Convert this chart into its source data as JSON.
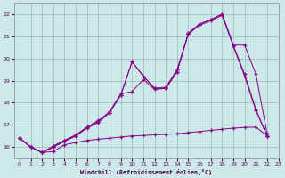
{
  "xlabel": "Windchill (Refroidissement éolien,°C)",
  "background_color": "#cce8e8",
  "line_color": "#880088",
  "grid_color": "#99bbbb",
  "xlim": [
    -0.5,
    23
  ],
  "ylim": [
    15.5,
    22.5
  ],
  "xticks": [
    0,
    1,
    2,
    3,
    4,
    5,
    6,
    7,
    8,
    9,
    10,
    11,
    12,
    13,
    14,
    15,
    16,
    17,
    18,
    19,
    20,
    21,
    22,
    23
  ],
  "yticks": [
    16,
    17,
    18,
    19,
    20,
    21,
    22
  ],
  "series": [
    {
      "x": [
        0,
        1,
        2,
        3,
        4,
        5,
        6,
        7,
        8,
        9,
        10,
        11,
        12,
        13,
        14,
        15,
        16,
        17,
        18,
        19,
        20,
        21,
        22
      ],
      "y": [
        16.4,
        16.0,
        15.75,
        15.8,
        16.1,
        16.2,
        16.3,
        16.35,
        16.4,
        16.45,
        16.5,
        16.52,
        16.55,
        16.57,
        16.6,
        16.65,
        16.7,
        16.75,
        16.8,
        16.85,
        16.88,
        16.9,
        16.5
      ]
    },
    {
      "x": [
        0,
        1,
        2,
        3,
        4,
        5,
        6,
        7,
        8,
        9,
        10,
        11,
        12,
        13,
        14,
        15,
        16,
        17,
        18,
        19,
        20,
        21,
        22
      ],
      "y": [
        16.4,
        16.0,
        15.75,
        16.0,
        16.3,
        16.5,
        16.9,
        17.15,
        17.6,
        18.4,
        18.5,
        19.05,
        18.6,
        18.65,
        19.4,
        21.15,
        21.55,
        21.75,
        22.0,
        20.6,
        19.3,
        17.7,
        16.5
      ]
    },
    {
      "x": [
        0,
        1,
        2,
        3,
        4,
        5,
        6,
        7,
        8,
        9,
        10,
        11,
        12,
        13,
        14,
        15,
        16,
        17,
        18,
        19,
        20,
        21,
        22
      ],
      "y": [
        16.4,
        16.0,
        15.75,
        16.0,
        16.25,
        16.5,
        16.85,
        17.1,
        17.55,
        18.35,
        19.85,
        19.2,
        18.65,
        18.7,
        19.5,
        21.1,
        21.5,
        21.7,
        21.95,
        20.55,
        19.2,
        17.65,
        16.5
      ]
    },
    {
      "x": [
        0,
        1,
        2,
        3,
        4,
        5,
        6,
        7,
        8,
        9,
        10,
        11,
        12,
        13,
        14,
        15,
        16,
        17,
        18,
        19,
        20,
        21,
        22
      ],
      "y": [
        16.4,
        16.0,
        15.75,
        16.05,
        16.3,
        16.55,
        16.9,
        17.2,
        17.55,
        18.35,
        19.85,
        19.2,
        18.65,
        18.65,
        19.4,
        21.1,
        21.55,
        21.75,
        22.0,
        20.6,
        20.6,
        19.3,
        16.6
      ]
    }
  ]
}
